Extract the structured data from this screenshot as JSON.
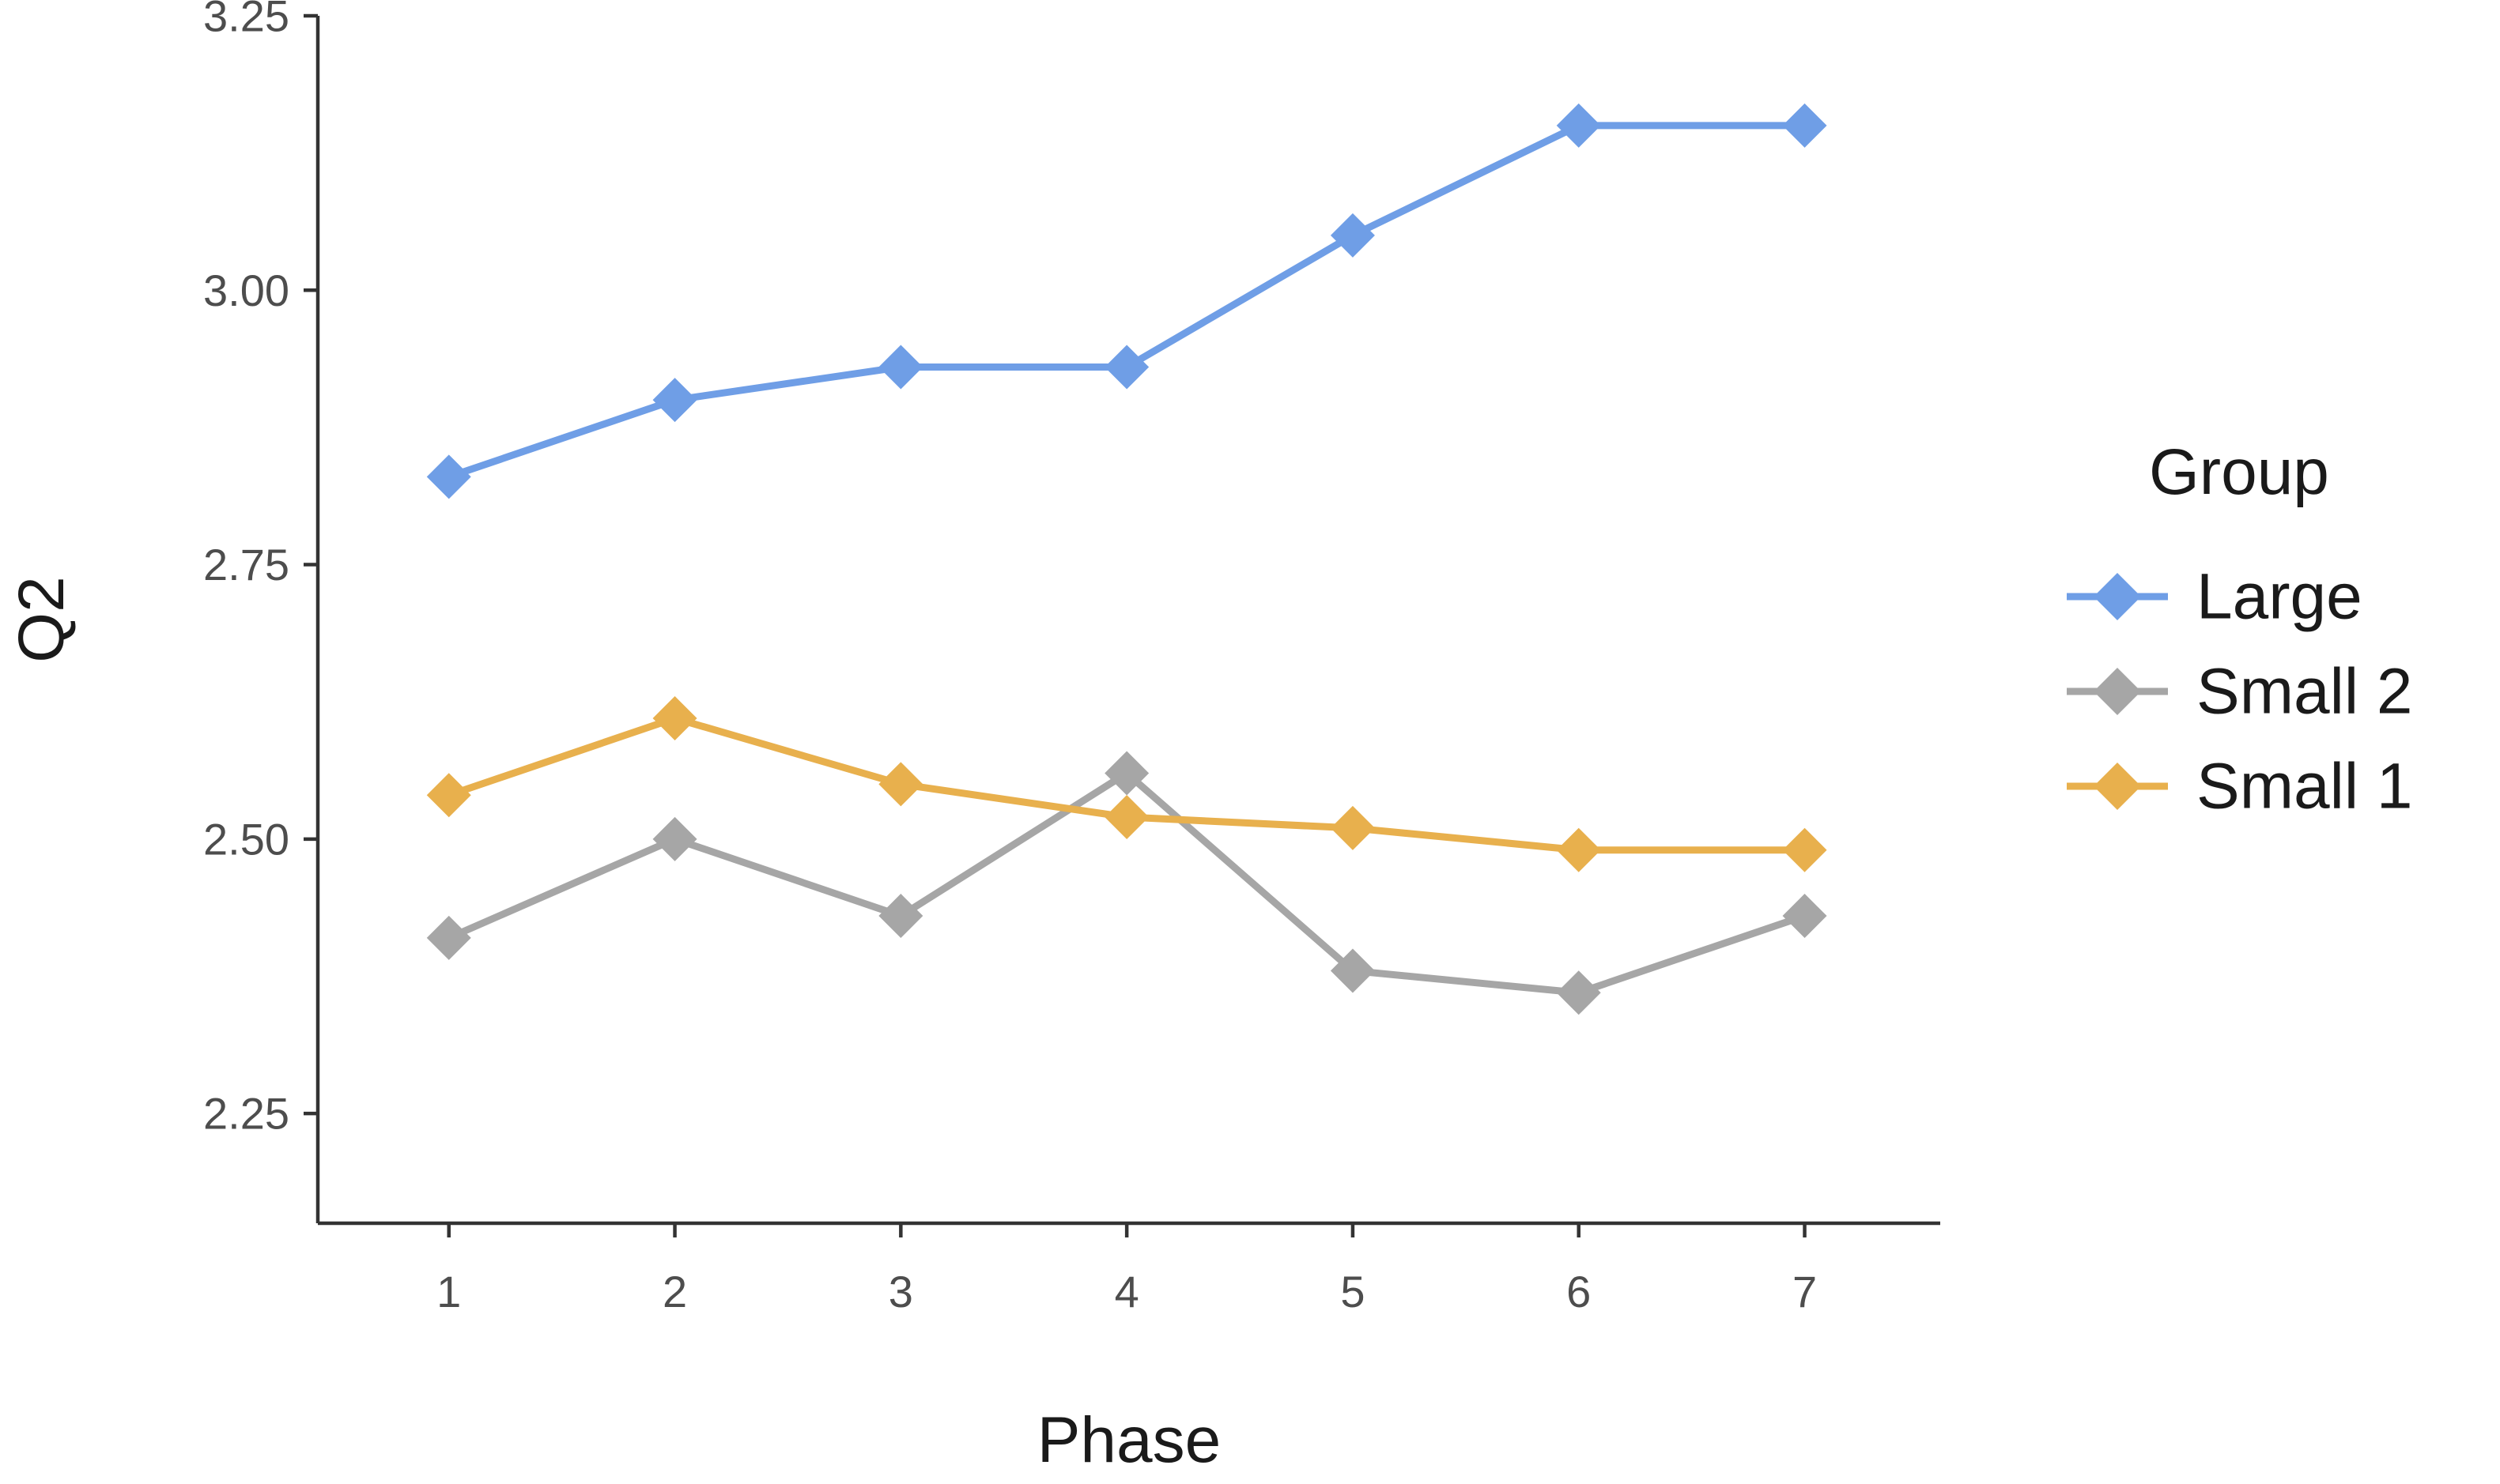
{
  "chart_data": {
    "type": "line",
    "title": "",
    "xlabel": "Phase",
    "ylabel": "Q2",
    "x": [
      1,
      2,
      3,
      4,
      5,
      6,
      7
    ],
    "x_ticks": [
      "1",
      "2",
      "3",
      "4",
      "5",
      "6",
      "7"
    ],
    "y_ticks": [
      "2.25",
      "2.50",
      "2.75",
      "3.00",
      "3.25"
    ],
    "ylim": [
      2.15,
      3.25
    ],
    "xlim": [
      0.42,
      7.6
    ],
    "grid": false,
    "legend": {
      "title": "Group",
      "position": "right"
    },
    "series": [
      {
        "name": "Large",
        "color": "#6f9ee6",
        "marker": "diamond",
        "values": [
          2.83,
          2.9,
          2.93,
          2.93,
          3.05,
          3.15,
          3.15
        ]
      },
      {
        "name": "Small 2",
        "color": "#a6a6a6",
        "marker": "diamond",
        "values": [
          2.41,
          2.5,
          2.43,
          2.56,
          2.38,
          2.36,
          2.43
        ]
      },
      {
        "name": "Small 1",
        "color": "#e8b04d",
        "marker": "diamond",
        "values": [
          2.54,
          2.61,
          2.55,
          2.52,
          2.51,
          2.49,
          2.49
        ]
      }
    ]
  }
}
